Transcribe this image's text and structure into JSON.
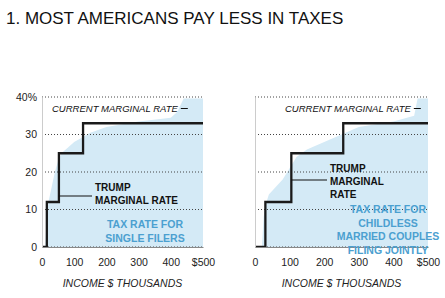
{
  "title": "1. MOST AMERICANS PAY LESS IN TAXES",
  "chart_data": [
    {
      "type": "line",
      "xlabel": "INCOME $ THOUSANDS",
      "xlim": [
        0,
        500
      ],
      "xticks": [
        0,
        100,
        200,
        300,
        400,
        {
          "value": 500,
          "label": "$500"
        }
      ],
      "ylim": [
        0,
        40
      ],
      "yticks": [
        0,
        10,
        20,
        30,
        {
          "value": 40,
          "label": "40%"
        }
      ],
      "grid": true,
      "annotations": [
        "TAX RATE FOR",
        "SINGLE FILERS"
      ],
      "series": [
        {
          "name": "CURRENT MARGINAL RATE",
          "type": "area",
          "color": "#d4eaf6",
          "x": [
            0,
            10,
            15,
            20,
            30,
            40,
            50,
            60,
            80,
            100,
            150,
            200,
            300,
            400,
            420,
            440,
            500
          ],
          "values": [
            0,
            0,
            8,
            12,
            16,
            20,
            23,
            25,
            26.5,
            28,
            30.5,
            32,
            33.5,
            34.5,
            36,
            39.6,
            39.6
          ]
        },
        {
          "name": "TRUMP MARGINAL RATE",
          "type": "step",
          "color": "#1a1a1a",
          "x": [
            0,
            15,
            52.5,
            127.5,
            500
          ],
          "values": [
            0,
            12,
            25,
            33,
            33
          ]
        }
      ]
    },
    {
      "type": "line",
      "xlabel": "INCOME $ THOUSANDS",
      "xlim": [
        0,
        500
      ],
      "xticks": [
        0,
        100,
        200,
        300,
        400,
        {
          "value": 500,
          "label": "$500"
        }
      ],
      "ylim": [
        0,
        40
      ],
      "yticks": [
        0,
        10,
        20,
        30,
        40
      ],
      "grid": true,
      "tick_labels": "x",
      "annotations": [
        "TAX RATE FOR",
        "CHILDLESS",
        "MARRIED COUPLES",
        "FILING JOINTLY"
      ],
      "series": [
        {
          "name": "CURRENT MARGINAL RATE",
          "type": "area",
          "color": "#d4eaf6",
          "x": [
            0,
            20,
            25,
            30,
            40,
            60,
            80,
            100,
            120,
            150,
            200,
            250,
            300,
            400,
            460,
            470,
            500
          ],
          "values": [
            0,
            0,
            8,
            11,
            14,
            16,
            18,
            21,
            24,
            26,
            28,
            30,
            32,
            33.5,
            35,
            39.6,
            39.6
          ]
        },
        {
          "name": "TRUMP MARGINAL RATE",
          "type": "step",
          "color": "#1a1a1a",
          "x": [
            0,
            30,
            105,
            255,
            500
          ],
          "values": [
            0,
            12,
            25,
            33,
            33
          ]
        }
      ]
    }
  ]
}
